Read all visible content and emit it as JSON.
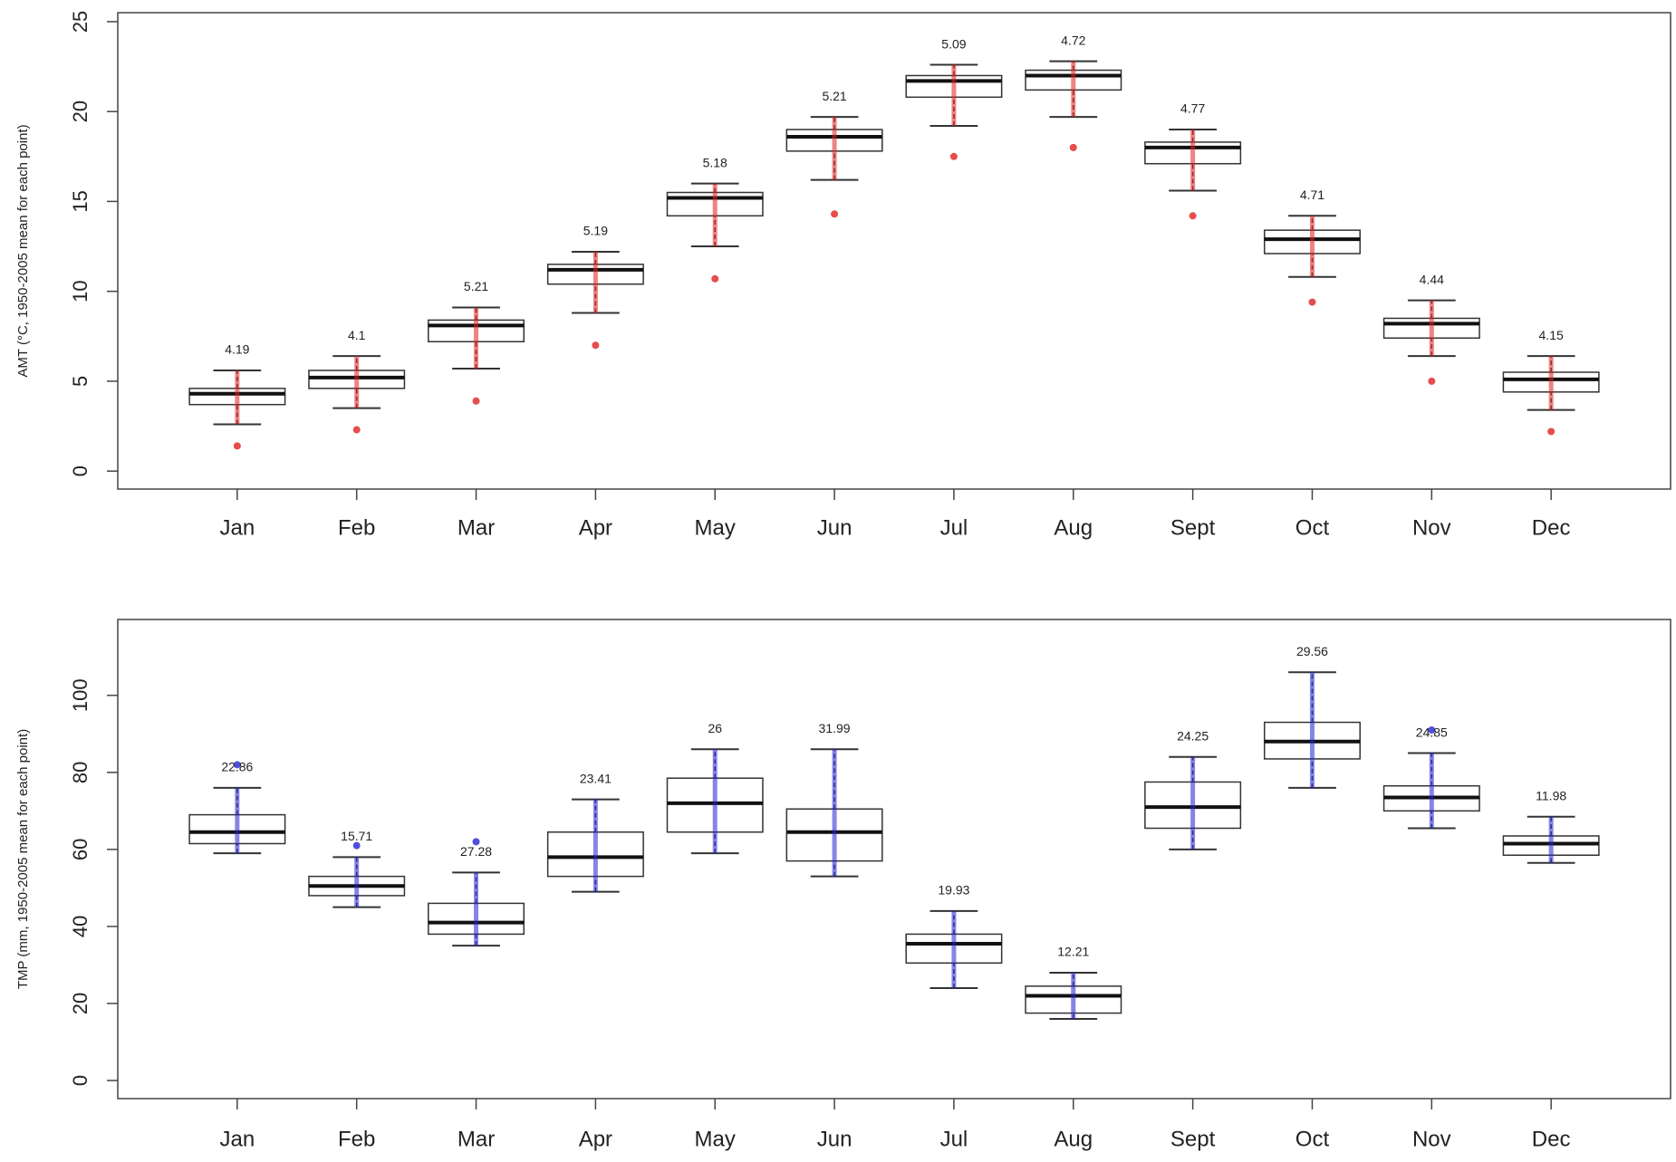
{
  "chart_data": [
    {
      "type": "boxplot",
      "y_label": "AMT (°C, 1950-2005 mean for each point)",
      "color": "#e0201f",
      "categories": [
        "Jan",
        "Feb",
        "Mar",
        "Apr",
        "May",
        "Jun",
        "Jul",
        "Aug",
        "Sept",
        "Oct",
        "Nov",
        "Dec"
      ],
      "ylim": [
        -1.0,
        25.5
      ],
      "yticks": [
        0,
        5,
        10,
        15,
        20,
        25
      ],
      "whisker_low": [
        2.6,
        3.5,
        5.7,
        8.8,
        12.5,
        16.2,
        19.2,
        19.7,
        15.6,
        10.8,
        6.4,
        3.4
      ],
      "q1": [
        3.7,
        4.6,
        7.2,
        10.4,
        14.2,
        17.8,
        20.8,
        21.2,
        17.1,
        12.1,
        7.4,
        4.4
      ],
      "median": [
        4.3,
        5.2,
        8.1,
        11.2,
        15.2,
        18.6,
        21.7,
        22.0,
        18.0,
        12.9,
        8.2,
        5.1
      ],
      "q3": [
        4.6,
        5.6,
        8.4,
        11.5,
        15.5,
        19.0,
        22.0,
        22.3,
        18.3,
        13.4,
        8.5,
        5.5
      ],
      "whisker_high": [
        5.6,
        6.4,
        9.1,
        12.2,
        16.0,
        19.7,
        22.6,
        22.8,
        19.0,
        14.2,
        9.5,
        6.4
      ],
      "outliers": [
        [
          1.4
        ],
        [
          2.3
        ],
        [
          3.9
        ],
        [
          7.0
        ],
        [
          10.7
        ],
        [
          14.3
        ],
        [
          17.5
        ],
        [
          18.0
        ],
        [
          14.2
        ],
        [
          9.4
        ],
        [
          5.0
        ],
        [
          2.2
        ]
      ],
      "labels": [
        4.19,
        4.1,
        5.21,
        5.19,
        5.18,
        5.21,
        5.09,
        4.72,
        4.77,
        4.71,
        4.44,
        4.15
      ]
    },
    {
      "type": "boxplot",
      "y_label": "TMP (mm, 1950-2005 mean for each point)",
      "color": "#2323d2",
      "categories": [
        "Jan",
        "Feb",
        "Mar",
        "Apr",
        "May",
        "Jun",
        "Jul",
        "Aug",
        "Sept",
        "Oct",
        "Nov",
        "Dec"
      ],
      "ylim": [
        -4.7,
        119.7
      ],
      "yticks": [
        0,
        20,
        40,
        60,
        80,
        100
      ],
      "whisker_low": [
        59,
        45,
        35,
        49,
        59,
        53,
        24,
        16,
        60,
        76,
        65.5,
        56.5
      ],
      "q1": [
        61.5,
        48,
        38,
        53,
        64.5,
        57,
        30.5,
        17.5,
        65.5,
        83.5,
        70,
        58.5
      ],
      "median": [
        64.5,
        50.5,
        41,
        58,
        72,
        64.5,
        35.5,
        22,
        71,
        88,
        73.5,
        61.5
      ],
      "q3": [
        69,
        53,
        46,
        64.5,
        78.5,
        70.5,
        38,
        24.5,
        77.5,
        93,
        76.5,
        63.5
      ],
      "whisker_high": [
        76,
        58,
        54,
        73,
        86,
        86,
        44,
        28,
        84,
        106,
        85,
        68.5
      ],
      "outliers": [
        [
          82
        ],
        [
          61
        ],
        [
          62
        ],
        [],
        [],
        [],
        [],
        [],
        [],
        [],
        [
          91
        ],
        []
      ],
      "labels": [
        22.86,
        15.71,
        27.28,
        23.41,
        26,
        31.99,
        19.93,
        12.21,
        24.25,
        29.56,
        24.85,
        11.98
      ]
    }
  ]
}
